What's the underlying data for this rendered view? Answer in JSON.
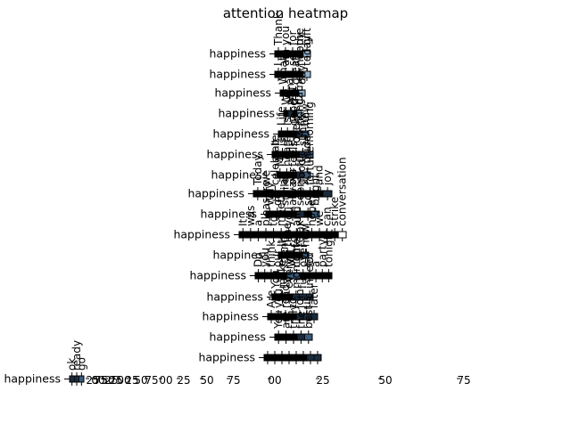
{
  "chart_data": {
    "type": "heatmap",
    "title": "attention heatmap",
    "xlabel": "",
    "ylabel": "",
    "row_label": "happiness",
    "grid": false,
    "colormap": [
      "#000000",
      "#1b2a3a",
      "#3a5a7a",
      "#8fb0cc",
      "#ffffff"
    ],
    "panels": [
      {
        "row": "happiness",
        "rows": 1,
        "cols": 5,
        "top_labels": [
          "Thank",
          "you",
          "for",
          "the",
          "gift"
        ],
        "cells": [
          [
            0.05,
            0.1,
            0.08,
            0.12,
            0.65
          ]
        ]
      },
      {
        "row": "happiness",
        "rows": 1,
        "cols": 5,
        "top_labels": [
          "I",
          "am",
          "so",
          "happy",
          "today"
        ],
        "cells": [
          [
            0.1,
            0.05,
            0.12,
            0.08,
            0.65
          ]
        ]
      },
      {
        "row": "happiness",
        "rows": 1,
        "cols": 4,
        "top_labels": [
          "What",
          "a",
          "great",
          "day"
        ],
        "cells": [
          [
            0.12,
            0.08,
            0.1,
            0.7
          ]
        ]
      },
      {
        "row": "happiness",
        "rows": 1,
        "cols": 4,
        "top_labels": [
          "We",
          "won",
          "the",
          "game"
        ],
        "cells": [
          [
            0.1,
            0.15,
            0.08,
            0.67
          ]
        ]
      },
      {
        "row": "happiness",
        "rows": 1,
        "cols": 5,
        "top_labels": [
          "Life",
          "is",
          "good",
          "right",
          "now"
        ],
        "cells": [
          [
            0.08,
            0.12,
            0.1,
            0.15,
            0.55
          ]
        ]
      },
      {
        "row": "happiness",
        "rows": 1,
        "cols": 6,
        "top_labels": [
          "It",
          "is",
          "a",
          "lovely",
          "sunny",
          "morning"
        ],
        "cells": [
          [
            0.1,
            0.08,
            0.12,
            0.06,
            0.14,
            0.5
          ]
        ]
      },
      {
        "row": "happiness",
        "rows": 1,
        "cols": 5,
        "top_labels": [
          "My",
          "heart",
          "feels",
          "full",
          "inside"
        ],
        "cells": [
          [
            0.08,
            0.1,
            0.12,
            0.2,
            0.5
          ]
        ]
      },
      {
        "row": "happiness",
        "rows": 1,
        "cols": 9,
        "top_labels": [
          "Today",
          "we",
          "celebrate",
          "all",
          "our",
          "good",
          "fortune",
          "and",
          "joy"
        ],
        "cells": [
          [
            0.05,
            0.08,
            0.1,
            0.07,
            0.09,
            0.12,
            0.11,
            0.06,
            0.32
          ]
        ]
      },
      {
        "row": "happiness",
        "rows": 1,
        "cols": 7,
        "top_labels": [
          "Why",
          "do",
          "smiles",
          "always",
          "seem",
          "so",
          "bright"
        ],
        "cells": [
          [
            0.1,
            0.08,
            0.12,
            0.09,
            0.15,
            0.06,
            0.4
          ]
        ]
      },
      {
        "row": "happiness",
        "rows": 1,
        "cols": 14,
        "top_labels": [
          "It",
          "was",
          "a",
          "pleasure",
          "to",
          "meet",
          "you",
          "and",
          "I",
          "hope",
          "we",
          "can",
          "strike",
          "conversation"
        ],
        "cells": [
          [
            0.04,
            0.05,
            0.06,
            0.07,
            0.05,
            0.06,
            0.08,
            0.05,
            0.06,
            0.07,
            0.08,
            0.09,
            0.1,
            0.92
          ]
        ]
      },
      {
        "row": "happiness",
        "rows": 1,
        "cols": 5,
        "top_labels": [
          "Its",
          "time",
          "to",
          "relax",
          "now"
        ],
        "cells": [
          [
            0.1,
            0.12,
            0.08,
            0.1,
            0.6
          ]
        ]
      },
      {
        "row": "happiness",
        "rows": 1,
        "cols": 12,
        "top_labels": [
          "Do",
          "you",
          "think",
          "our",
          "friends",
          "will",
          "come",
          "over",
          "for",
          "a",
          "party",
          "tonight"
        ],
        "cells": [
          [
            0.06,
            0.08,
            0.1,
            0.07,
            0.12,
            0.55,
            0.6,
            0.09,
            0.06,
            0.05,
            0.08,
            0.1
          ]
        ]
      },
      {
        "row": "happiness",
        "rows": 1,
        "cols": 6,
        "top_labels": [
          "You",
          "make",
          "every",
          "moment",
          "fun",
          "indeed"
        ],
        "cells": [
          [
            0.08,
            0.1,
            0.12,
            0.14,
            0.2,
            0.36
          ]
        ]
      },
      {
        "row": "happiness",
        "rows": 1,
        "cols": 7,
        "top_labels": [
          "Are",
          "you",
          "ready",
          "to",
          "join",
          "us",
          "later"
        ],
        "cells": [
          [
            0.06,
            0.08,
            0.1,
            0.12,
            0.14,
            0.2,
            0.3
          ]
        ]
      },
      {
        "row": "happiness",
        "rows": 1,
        "cols": 5,
        "top_labels": [
          "You",
          "are",
          "truly",
          "the",
          "best"
        ],
        "cells": [
          [
            0.1,
            0.08,
            0.12,
            0.15,
            0.55
          ]
        ]
      },
      {
        "row": "happiness",
        "rows": 1,
        "cols": 8,
        "top_labels": [
          "",
          "",
          "",
          "",
          "",
          "",
          "",
          ""
        ],
        "cells": [
          [
            0.08,
            0.1,
            0.06,
            0.12,
            0.09,
            0.11,
            0.14,
            0.3
          ]
        ]
      },
      {
        "row": "happiness",
        "rows": 1,
        "cols": 3,
        "top_labels": [
          "ok",
          "ready",
          "go"
        ],
        "cells": [
          [
            0.2,
            0.3,
            0.5
          ]
        ]
      }
    ],
    "bottom_tick_labels": [
      "25",
      "75",
      "50",
      "25",
      "00",
      "25",
      "50",
      "75",
      "00",
      "25",
      "50",
      "75",
      "00",
      "25",
      "50",
      "75",
      "00",
      "25"
    ]
  }
}
